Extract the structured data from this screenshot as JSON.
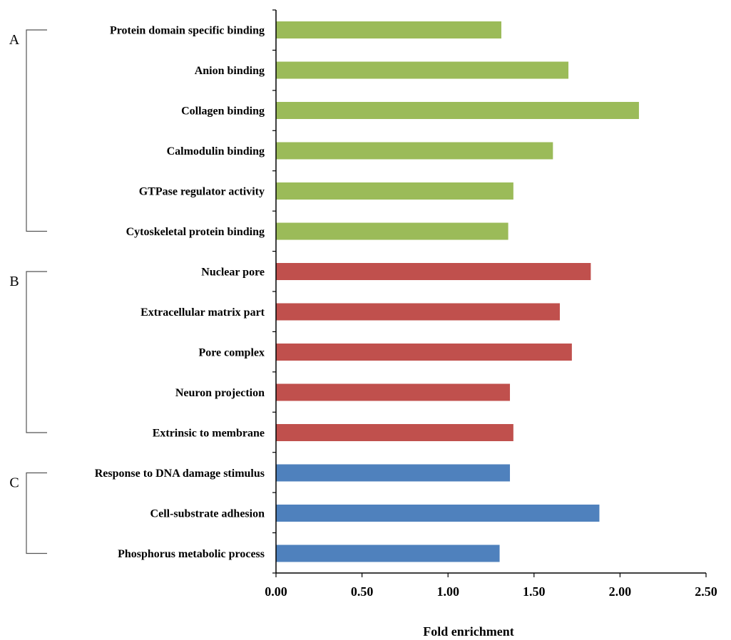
{
  "chart_data": {
    "type": "bar",
    "orientation": "horizontal",
    "title": "",
    "xlabel": "Fold enrichment",
    "ylabel": "",
    "xlim": [
      0,
      2.5
    ],
    "xticks": [
      "0.00",
      "0.50",
      "1.00",
      "1.50",
      "2.00",
      "2.50"
    ],
    "grid": false,
    "legend": "none",
    "categories": [
      "Protein domain specific binding",
      "Anion binding",
      "Collagen binding",
      "Calmodulin binding",
      "GTPase regulator activity",
      "Cytoskeletal protein binding",
      "Nuclear pore",
      "Extracellular matrix part",
      "Pore complex",
      "Neuron projection",
      "Extrinsic to membrane",
      "Response to DNA damage stimulus",
      "Cell-substrate adhesion",
      "Phosphorus metabolic process"
    ],
    "values": [
      1.31,
      1.7,
      2.11,
      1.61,
      1.38,
      1.35,
      1.83,
      1.65,
      1.72,
      1.36,
      1.38,
      1.36,
      1.88,
      1.3
    ],
    "groups": [
      {
        "label": "A",
        "start": 0,
        "end": 5,
        "color": "#9bbb59"
      },
      {
        "label": "B",
        "start": 6,
        "end": 10,
        "color": "#c0504d"
      },
      {
        "label": "C",
        "start": 11,
        "end": 13,
        "color": "#4f81bd"
      }
    ]
  }
}
